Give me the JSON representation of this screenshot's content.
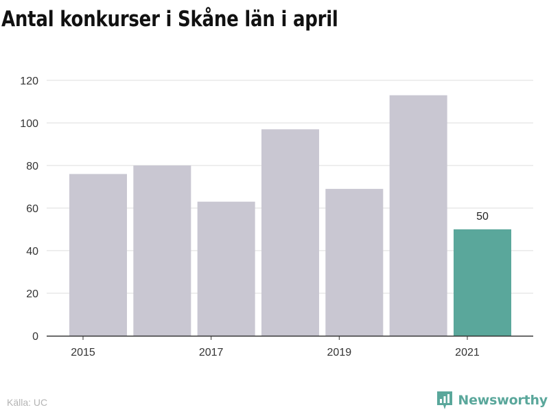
{
  "title": "Antal konkurser i Skåne län i april",
  "source": "Källa: UC",
  "brand": {
    "name": "Newsworthy",
    "icon": "bar-chart-badge-icon"
  },
  "colors": {
    "bar": "#c9c7d2",
    "highlight": "#5aa79b",
    "grid": "#dddddd",
    "axis": "#333333"
  },
  "chart_data": {
    "type": "bar",
    "categories": [
      "2015",
      "2016",
      "2017",
      "2018",
      "2019",
      "2020",
      "2021"
    ],
    "values": [
      76,
      80,
      63,
      97,
      69,
      113,
      50
    ],
    "x_tick_labels": [
      "2015",
      "2017",
      "2019",
      "2021"
    ],
    "y_ticks": [
      0,
      20,
      40,
      60,
      80,
      100,
      120
    ],
    "ylim": [
      0,
      120
    ],
    "grid": true,
    "highlight_category": "2021",
    "data_labels": [
      {
        "category": "2021",
        "text": "50"
      }
    ]
  }
}
